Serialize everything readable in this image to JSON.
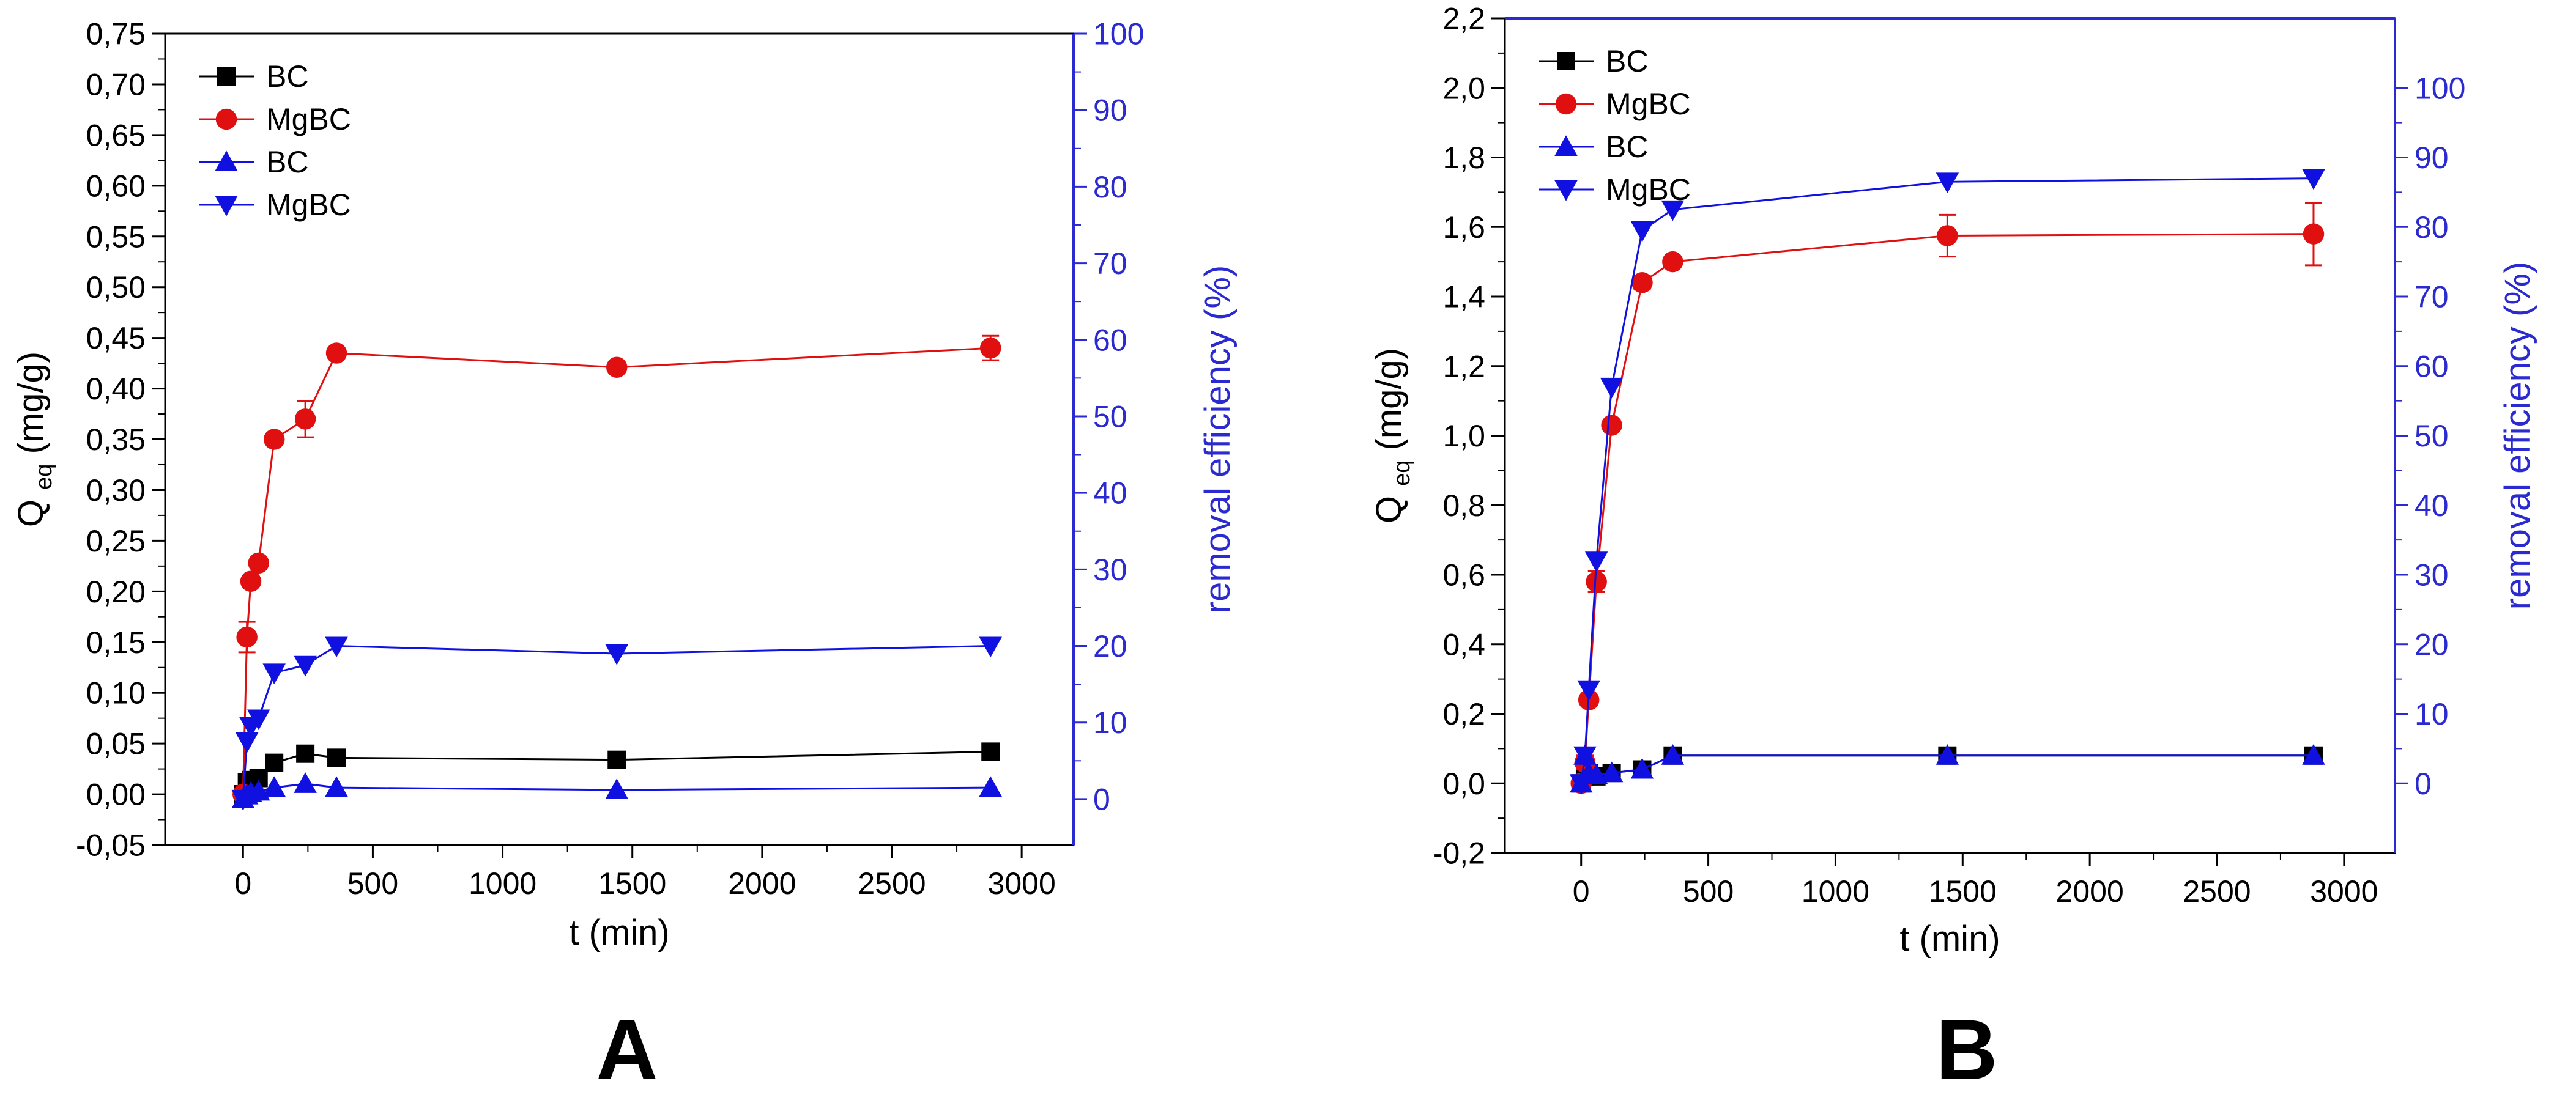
{
  "chart_data": [
    {
      "type": "line",
      "panel_label": "A",
      "xlabel": "t (min)",
      "ylabel_left_main": "Q",
      "ylabel_left_sub": "eq",
      "ylabel_left_unit": " (mg/g)",
      "ylabel_right": "removal efficiency (%)",
      "xlim": [
        -300,
        3200
      ],
      "ylim_left": [
        -0.05,
        0.75
      ],
      "ylim_right": [
        -6.0,
        100
      ],
      "x_ticks": [
        0,
        500,
        1000,
        1500,
        2000,
        2500,
        3000
      ],
      "x_tick_labels": [
        "0",
        "500",
        "1000",
        "1500",
        "2000",
        "2500",
        "3000"
      ],
      "y_left_ticks": [
        -0.05,
        0,
        0.05,
        0.1,
        0.15,
        0.2,
        0.25,
        0.3,
        0.35,
        0.4,
        0.45,
        0.5,
        0.55,
        0.6,
        0.65,
        0.7,
        0.75
      ],
      "y_left_tick_labels": [
        "-0,05",
        "0,00",
        "0,05",
        "0,10",
        "0,15",
        "0,20",
        "0,25",
        "0,30",
        "0,35",
        "0,40",
        "0,45",
        "0,50",
        "0,55",
        "0,60",
        "0,65",
        "0,70",
        "0,75"
      ],
      "y_right_ticks": [
        0,
        10,
        20,
        30,
        40,
        50,
        60,
        70,
        80,
        90,
        100
      ],
      "y_right_tick_labels": [
        "0",
        "10",
        "20",
        "30",
        "40",
        "50",
        "60",
        "70",
        "80",
        "90",
        "100"
      ],
      "legend_position": "top-left",
      "series": [
        {
          "name": "BC",
          "axis": "left",
          "marker": "square",
          "color": "#000000",
          "x": [
            0,
            15,
            30,
            60,
            120,
            240,
            360,
            1440,
            2880
          ],
          "y": [
            0.0,
            0.012,
            0.014,
            0.016,
            0.031,
            0.04,
            0.036,
            0.034,
            0.042
          ]
        },
        {
          "name": "MgBC",
          "axis": "left",
          "marker": "circle",
          "color": "#e01010",
          "x": [
            0,
            15,
            30,
            60,
            120,
            240,
            360,
            1440,
            2880
          ],
          "y": [
            0.0,
            0.155,
            0.21,
            0.228,
            0.35,
            0.37,
            0.435,
            0.421,
            0.44
          ],
          "err": [
            0,
            0.015,
            0,
            0,
            0,
            0.018,
            0,
            0,
            0.012
          ]
        },
        {
          "name": "BC",
          "axis": "right",
          "marker": "triangle-up",
          "color": "#1010e0",
          "x": [
            0,
            15,
            30,
            60,
            120,
            240,
            360,
            1440,
            2880
          ],
          "y": [
            0.0,
            0.5,
            0.8,
            1.0,
            1.5,
            2.0,
            1.5,
            1.2,
            1.5
          ]
        },
        {
          "name": "MgBC",
          "axis": "right",
          "marker": "triangle-down",
          "color": "#1010e0",
          "x": [
            0,
            15,
            30,
            60,
            120,
            240,
            360,
            1440,
            2880
          ],
          "y": [
            0.0,
            7.5,
            9.5,
            10.5,
            16.5,
            17.5,
            20.0,
            19.0,
            20.0
          ]
        }
      ]
    },
    {
      "type": "line",
      "panel_label": "B",
      "xlabel": "t (min)",
      "ylabel_left_main": "Q",
      "ylabel_left_sub": "eq",
      "ylabel_left_unit": " (mg/g)",
      "ylabel_right": "removal efficiency (%)",
      "xlim": [
        -300,
        3200
      ],
      "ylim_left": [
        -0.2,
        2.2
      ],
      "ylim_right": [
        -10,
        110
      ],
      "x_ticks": [
        0,
        500,
        1000,
        1500,
        2000,
        2500,
        3000
      ],
      "x_tick_labels": [
        "0",
        "500",
        "1000",
        "1500",
        "2000",
        "2500",
        "3000"
      ],
      "y_left_ticks": [
        -0.2,
        0,
        0.2,
        0.4,
        0.6,
        0.8,
        1.0,
        1.2,
        1.4,
        1.6,
        1.8,
        2.0,
        2.2
      ],
      "y_left_tick_labels": [
        "-0,2",
        "0,0",
        "0,2",
        "0,4",
        "0,6",
        "0,8",
        "1,0",
        "1,2",
        "1,4",
        "1,6",
        "1,8",
        "2,0",
        "2,2"
      ],
      "y_right_ticks": [
        0,
        10,
        20,
        30,
        40,
        50,
        60,
        70,
        80,
        90,
        100
      ],
      "y_right_tick_labels": [
        "0",
        "10",
        "20",
        "30",
        "40",
        "50",
        "60",
        "70",
        "80",
        "90",
        "100"
      ],
      "legend_position": "top-left",
      "series": [
        {
          "name": "BC",
          "axis": "left",
          "marker": "square",
          "color": "#000000",
          "x": [
            0,
            15,
            30,
            60,
            120,
            240,
            360,
            1440,
            2880
          ],
          "y": [
            0.0,
            0.02,
            0.03,
            0.02,
            0.03,
            0.04,
            0.08,
            0.08,
            0.08
          ]
        },
        {
          "name": "MgBC",
          "axis": "left",
          "marker": "circle",
          "color": "#e01010",
          "x": [
            0,
            15,
            30,
            60,
            120,
            240,
            360,
            1440,
            2880
          ],
          "y": [
            0.0,
            0.06,
            0.24,
            0.58,
            1.03,
            1.44,
            1.5,
            1.575,
            1.58
          ],
          "err": [
            0,
            0.02,
            0,
            0.03,
            0,
            0.02,
            0,
            0.06,
            0.09
          ]
        },
        {
          "name": "BC",
          "axis": "right",
          "marker": "triangle-up",
          "color": "#1010e0",
          "x": [
            0,
            15,
            30,
            60,
            120,
            240,
            360,
            1440,
            2880
          ],
          "y": [
            0.0,
            4.0,
            1.5,
            1.2,
            1.5,
            2.0,
            4.0,
            4.0,
            4.0
          ]
        },
        {
          "name": "MgBC",
          "axis": "right",
          "marker": "triangle-down",
          "color": "#1010e0",
          "x": [
            0,
            15,
            30,
            60,
            120,
            240,
            360,
            1440,
            2880
          ],
          "y": [
            0.0,
            4.0,
            13.5,
            32.0,
            57.0,
            79.5,
            82.5,
            86.5,
            87.0
          ]
        }
      ]
    }
  ]
}
